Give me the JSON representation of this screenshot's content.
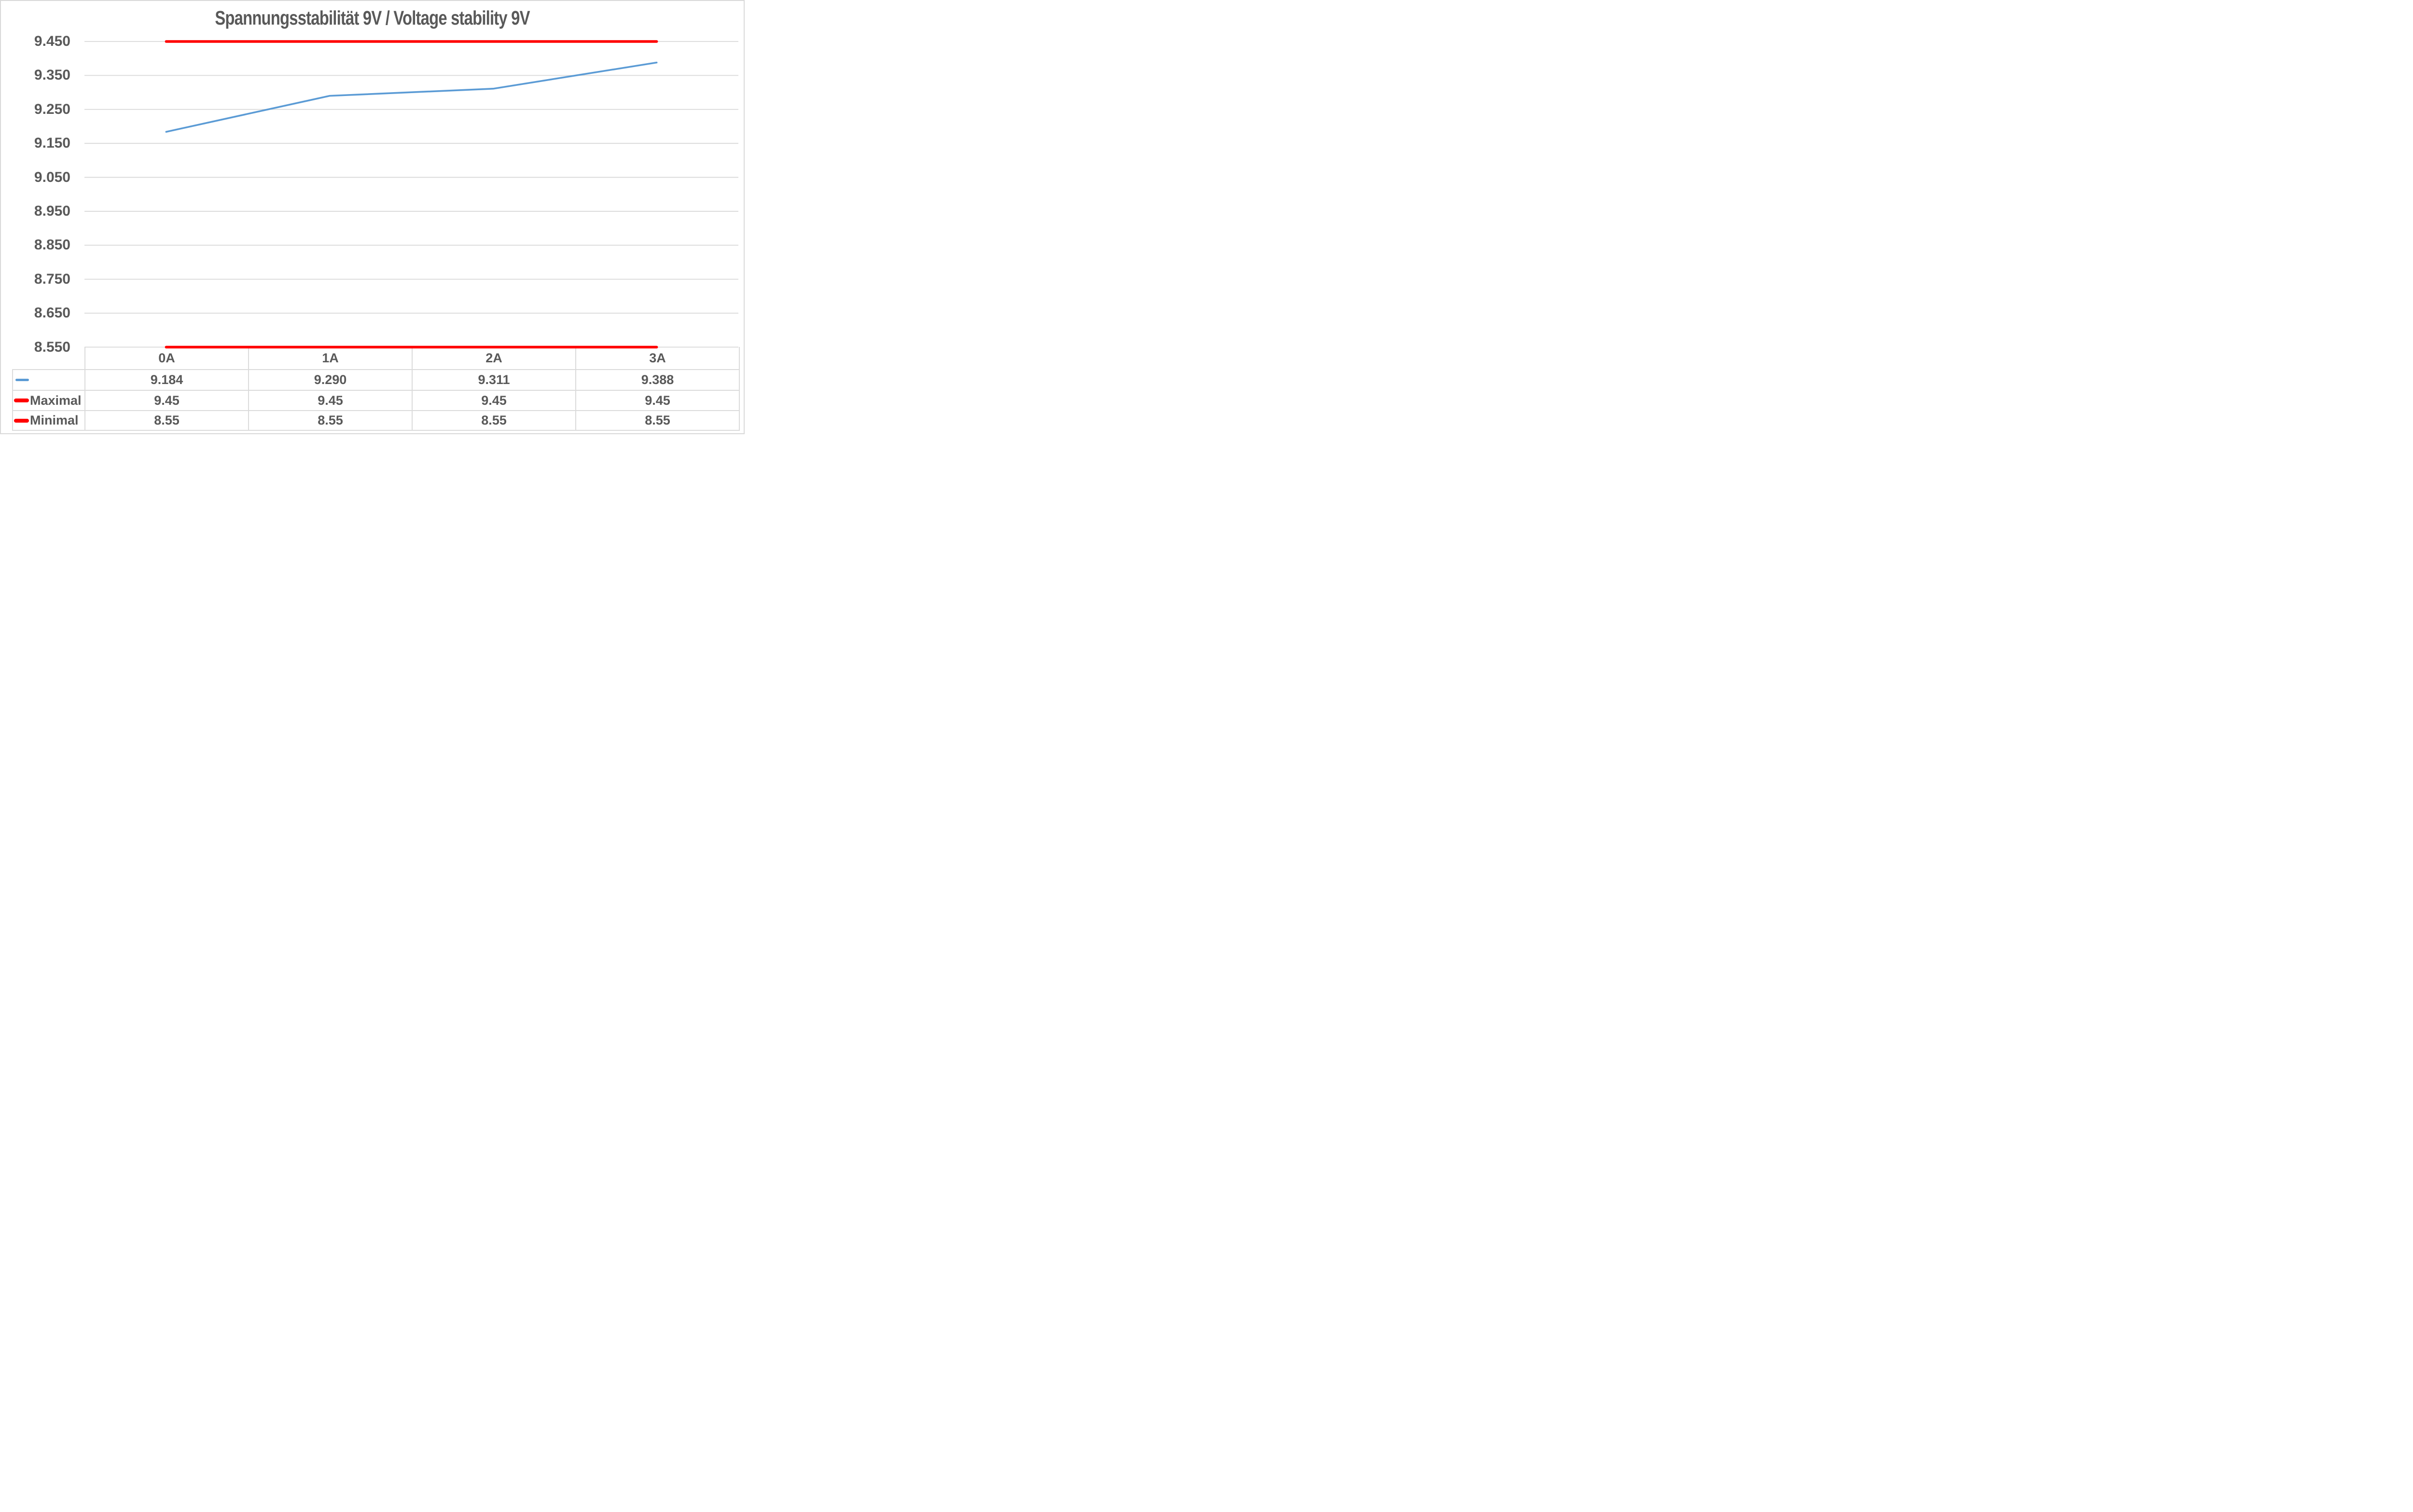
{
  "chart_data": {
    "type": "line",
    "title": "Spannungsstabilität 9V / Voltage stability 9V",
    "categories": [
      "0A",
      "1A",
      "2A",
      "3A"
    ],
    "series": [
      {
        "name": "",
        "color": "#5B9BD5",
        "line_width": 3.6,
        "values": [
          9.184,
          9.29,
          9.311,
          9.388
        ],
        "labels": [
          "9.184",
          "9.290",
          "9.311",
          "9.388"
        ]
      },
      {
        "name": "Maximal",
        "color": "#FF0000",
        "line_width": 5.5,
        "values": [
          9.45,
          9.45,
          9.45,
          9.45
        ],
        "labels": [
          "9.45",
          "9.45",
          "9.45",
          "9.45"
        ]
      },
      {
        "name": "Minimal",
        "color": "#FF0000",
        "line_width": 5.5,
        "values": [
          8.55,
          8.55,
          8.55,
          8.55
        ],
        "labels": [
          "8.55",
          "8.55",
          "8.55",
          "8.55"
        ]
      }
    ],
    "ylim": [
      8.55,
      9.45
    ],
    "yticks": [
      9.45,
      9.35,
      9.25,
      9.15,
      9.05,
      8.95,
      8.85,
      8.75,
      8.65,
      8.55
    ],
    "ytick_labels": [
      "9.450",
      "9.350",
      "9.250",
      "9.150",
      "9.050",
      "8.950",
      "8.850",
      "8.750",
      "8.650",
      "8.550"
    ],
    "grid": true,
    "gridline_color": "#d9d9d9",
    "text_color": "#595959",
    "legend_position": "table-left",
    "data_table_shown": true
  }
}
